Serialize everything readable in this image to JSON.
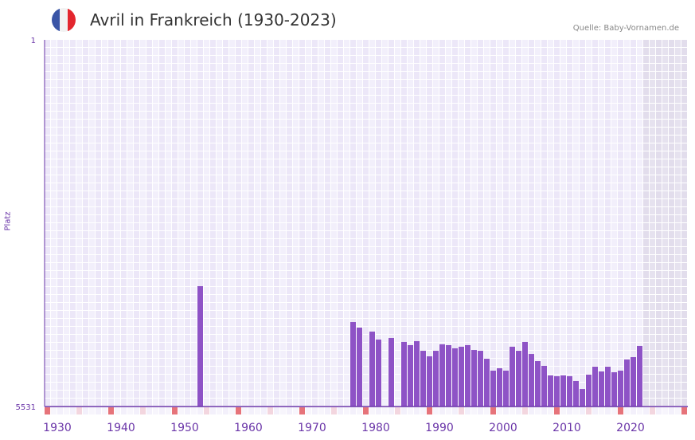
{
  "header": {
    "title": "Avril in Frankreich (1930-2023)",
    "source": "Quelle: Baby-Vornamen.de",
    "flag_colors": [
      "#3a55a6",
      "#f2f2f2",
      "#e3262e"
    ]
  },
  "colors": {
    "bar": "#8e53c6",
    "axis": "#6a35a8",
    "decade_marker": "#e6737a",
    "half_decade_marker": "#f3d6df"
  },
  "chart_data": {
    "type": "bar",
    "title": "Avril in Frankreich (1930-2023)",
    "xlabel": "",
    "ylabel": "Platz",
    "y_inverted": true,
    "ylim": [
      1,
      5531
    ],
    "y_ticks": [
      "1",
      "5531"
    ],
    "x_range": [
      1929,
      2029
    ],
    "x_ticks": [
      1930,
      1940,
      1950,
      1960,
      1970,
      1980,
      1990,
      2000,
      2010,
      2020
    ],
    "shaded_from_year": 2023,
    "grid": true,
    "points": [
      {
        "year": 1953,
        "rank": 3716
      },
      {
        "year": 1977,
        "rank": 4257
      },
      {
        "year": 1978,
        "rank": 4341
      },
      {
        "year": 1980,
        "rank": 4401
      },
      {
        "year": 1981,
        "rank": 4521
      },
      {
        "year": 1983,
        "rank": 4497
      },
      {
        "year": 1985,
        "rank": 4557
      },
      {
        "year": 1986,
        "rank": 4605
      },
      {
        "year": 1987,
        "rank": 4545
      },
      {
        "year": 1988,
        "rank": 4690
      },
      {
        "year": 1989,
        "rank": 4774
      },
      {
        "year": 1990,
        "rank": 4690
      },
      {
        "year": 1991,
        "rank": 4593
      },
      {
        "year": 1992,
        "rank": 4605
      },
      {
        "year": 1993,
        "rank": 4653
      },
      {
        "year": 1994,
        "rank": 4629
      },
      {
        "year": 1995,
        "rank": 4605
      },
      {
        "year": 1996,
        "rank": 4678
      },
      {
        "year": 1997,
        "rank": 4690
      },
      {
        "year": 1998,
        "rank": 4810
      },
      {
        "year": 1999,
        "rank": 4990
      },
      {
        "year": 2000,
        "rank": 4954
      },
      {
        "year": 2001,
        "rank": 4990
      },
      {
        "year": 2002,
        "rank": 4629
      },
      {
        "year": 2003,
        "rank": 4690
      },
      {
        "year": 2004,
        "rank": 4557
      },
      {
        "year": 2005,
        "rank": 4738
      },
      {
        "year": 2006,
        "rank": 4846
      },
      {
        "year": 2007,
        "rank": 4918
      },
      {
        "year": 2008,
        "rank": 5062
      },
      {
        "year": 2009,
        "rank": 5074
      },
      {
        "year": 2010,
        "rank": 5062
      },
      {
        "year": 2011,
        "rank": 5074
      },
      {
        "year": 2012,
        "rank": 5146
      },
      {
        "year": 2013,
        "rank": 5267
      },
      {
        "year": 2014,
        "rank": 5050
      },
      {
        "year": 2015,
        "rank": 4930
      },
      {
        "year": 2016,
        "rank": 5002
      },
      {
        "year": 2017,
        "rank": 4930
      },
      {
        "year": 2018,
        "rank": 5014
      },
      {
        "year": 2019,
        "rank": 4990
      },
      {
        "year": 2020,
        "rank": 4822
      },
      {
        "year": 2021,
        "rank": 4786
      },
      {
        "year": 2022,
        "rank": 4617
      }
    ]
  }
}
